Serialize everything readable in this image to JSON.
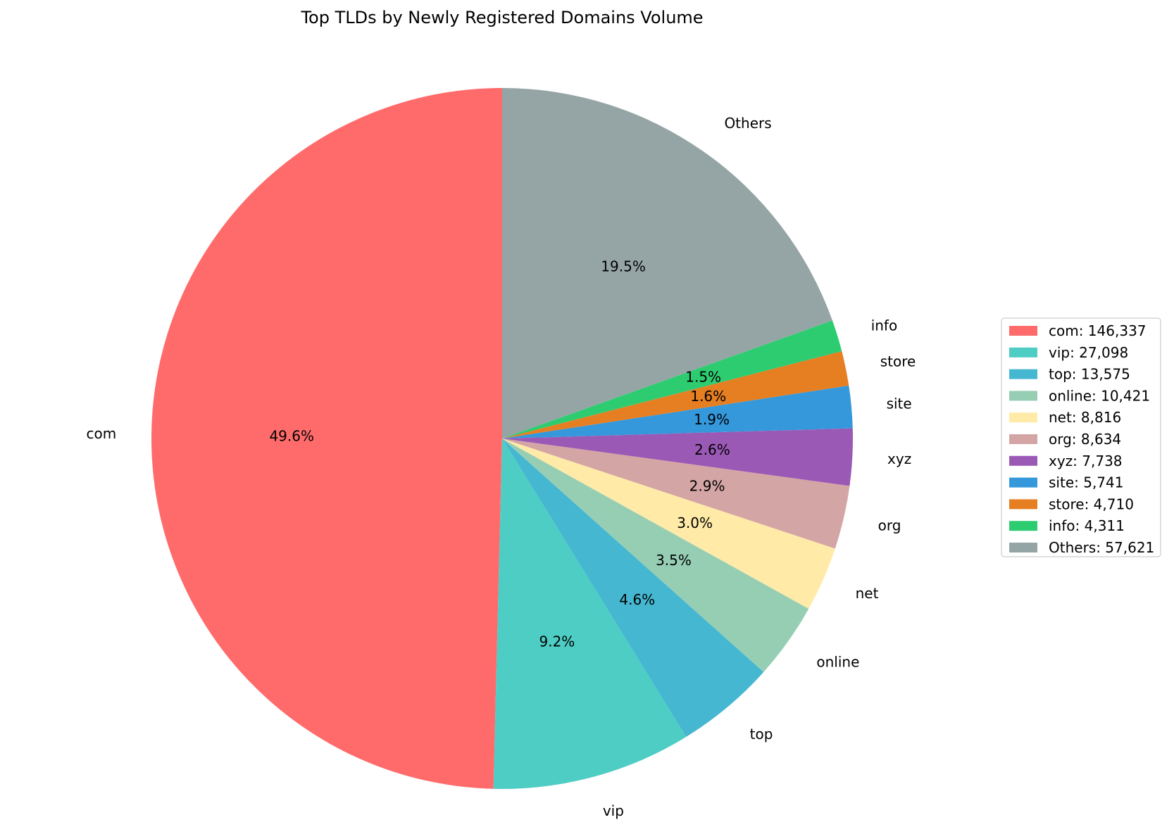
{
  "chart_data": {
    "type": "pie",
    "title": "Top TLDs by Newly Registered Domains Volume",
    "slices": [
      {
        "label": "com",
        "value": 146337,
        "pct_label": "49.6%",
        "legend": "com: 146,337",
        "color": "#ff6b6b"
      },
      {
        "label": "vip",
        "value": 27098,
        "pct_label": "9.2%",
        "legend": "vip: 27,098",
        "color": "#4ecdc4"
      },
      {
        "label": "top",
        "value": 13575,
        "pct_label": "4.6%",
        "legend": "top: 13,575",
        "color": "#45b7d1"
      },
      {
        "label": "online",
        "value": 10421,
        "pct_label": "3.5%",
        "legend": "online: 10,421",
        "color": "#96ceb4"
      },
      {
        "label": "net",
        "value": 8816,
        "pct_label": "3.0%",
        "legend": "net: 8,816",
        "color": "#ffeaa7"
      },
      {
        "label": "org",
        "value": 8634,
        "pct_label": "2.9%",
        "legend": "org: 8,634",
        "color": "#d4a5a5"
      },
      {
        "label": "xyz",
        "value": 7738,
        "pct_label": "2.6%",
        "legend": "xyz: 7,738",
        "color": "#9b59b6"
      },
      {
        "label": "site",
        "value": 5741,
        "pct_label": "1.9%",
        "legend": "site: 5,741",
        "color": "#3498db"
      },
      {
        "label": "store",
        "value": 4710,
        "pct_label": "1.6%",
        "legend": "store: 4,710",
        "color": "#e67e22"
      },
      {
        "label": "info",
        "value": 4311,
        "pct_label": "1.5%",
        "legend": "info: 4,311",
        "color": "#2ecc71"
      },
      {
        "label": "Others",
        "value": 57621,
        "pct_label": "19.5%",
        "legend": "Others: 57,621",
        "color": "#95a5a6"
      }
    ],
    "start_angle": "12 o'clock",
    "direction": "counterclockwise",
    "legend_placement": "right"
  }
}
